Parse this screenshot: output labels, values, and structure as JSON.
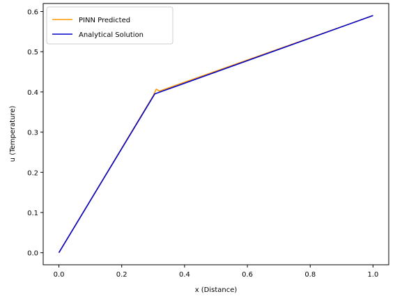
{
  "chart_data": {
    "type": "line",
    "title": "",
    "xlabel": "x (Distance)",
    "ylabel": "u (Temperature)",
    "xlim": [
      -0.05,
      1.05
    ],
    "ylim": [
      -0.03,
      0.62
    ],
    "xticks": [
      0.0,
      0.2,
      0.4,
      0.6,
      0.8,
      1.0
    ],
    "xtick_labels": [
      "0.0",
      "0.2",
      "0.4",
      "0.6",
      "0.8",
      "1.0"
    ],
    "yticks": [
      0.0,
      0.1,
      0.2,
      0.3,
      0.4,
      0.5,
      0.6
    ],
    "ytick_labels": [
      "0.0",
      "0.1",
      "0.2",
      "0.3",
      "0.4",
      "0.5",
      "0.6"
    ],
    "grid": false,
    "legend_position": "top-left",
    "series": [
      {
        "name": "PINN Predicted",
        "color": "#ff9900",
        "x": [
          0.0,
          0.3,
          0.31,
          0.32,
          1.0
        ],
        "y": [
          0.0,
          0.39,
          0.407,
          0.402,
          0.59
        ]
      },
      {
        "name": "Analytical Solution",
        "color": "#0000cc",
        "x": [
          0.0,
          0.305,
          1.0
        ],
        "y": [
          0.0,
          0.395,
          0.59
        ]
      }
    ]
  }
}
